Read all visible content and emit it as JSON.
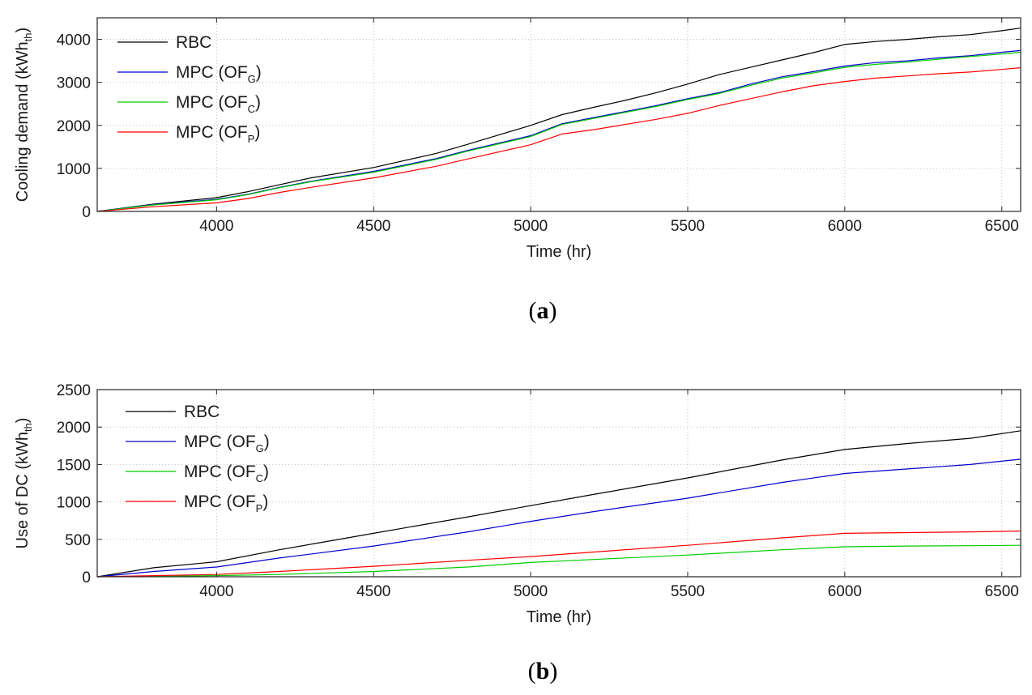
{
  "chart_data": [
    {
      "type": "line",
      "panel": "a",
      "xlabel": "Time (hr)",
      "ylabel": "Cooling demand (kWh",
      "ylabel_sub": "th",
      "ylabel_close": ")",
      "xlim": [
        3620,
        6560
      ],
      "ylim": [
        0,
        4500
      ],
      "xticks": [
        4000,
        4500,
        5000,
        5500,
        6000,
        6500
      ],
      "yticks": [
        0,
        1000,
        2000,
        3000,
        4000
      ],
      "grid": true,
      "legend": "top-left",
      "x": [
        3620,
        3800,
        4000,
        4100,
        4200,
        4300,
        4500,
        4700,
        4800,
        5000,
        5100,
        5200,
        5300,
        5400,
        5500,
        5600,
        5700,
        5800,
        5900,
        6000,
        6100,
        6200,
        6300,
        6400,
        6500,
        6560
      ],
      "series": [
        {
          "name": "RBC",
          "color": "#000000",
          "legend_main": "RBC",
          "legend_sub": "",
          "legend_end": "",
          "values": [
            0,
            170,
            320,
            460,
            620,
            780,
            1020,
            1350,
            1560,
            2000,
            2250,
            2420,
            2580,
            2760,
            2960,
            3180,
            3350,
            3520,
            3690,
            3880,
            3950,
            4000,
            4060,
            4110,
            4200,
            4260
          ]
        },
        {
          "name": "MPC (OF_G)",
          "color": "#0000cc",
          "legend_main": "MPC (OF",
          "legend_sub": "G",
          "legend_end": ")",
          "values": [
            0,
            160,
            280,
            400,
            560,
            700,
            930,
            1230,
            1420,
            1760,
            2040,
            2180,
            2320,
            2460,
            2620,
            2760,
            2960,
            3130,
            3250,
            3380,
            3460,
            3500,
            3570,
            3620,
            3700,
            3740
          ]
        },
        {
          "name": "MPC (OF_C)",
          "color": "#00cc00",
          "legend_main": "MPC (OF",
          "legend_sub": "C",
          "legend_end": ")",
          "values": [
            0,
            150,
            270,
            390,
            550,
            690,
            910,
            1210,
            1400,
            1740,
            2020,
            2160,
            2300,
            2440,
            2600,
            2740,
            2930,
            3100,
            3220,
            3350,
            3420,
            3470,
            3540,
            3600,
            3660,
            3700
          ]
        },
        {
          "name": "MPC (OF_P)",
          "color": "#ff0000",
          "legend_main": "MPC (OF",
          "legend_sub": "P",
          "legend_end": ")",
          "values": [
            0,
            110,
            200,
            300,
            440,
            560,
            780,
            1050,
            1220,
            1550,
            1800,
            1900,
            2020,
            2140,
            2280,
            2460,
            2620,
            2780,
            2920,
            3020,
            3100,
            3150,
            3200,
            3240,
            3300,
            3340
          ]
        }
      ],
      "caption": "a"
    },
    {
      "type": "line",
      "panel": "b",
      "xlabel": "Time (hr)",
      "ylabel": "Use of DC  (kWh",
      "ylabel_sub": "th",
      "ylabel_close": ")",
      "xlim": [
        3620,
        6560
      ],
      "ylim": [
        0,
        2500
      ],
      "xticks": [
        4000,
        4500,
        5000,
        5500,
        6000,
        6500
      ],
      "yticks": [
        0,
        500,
        1000,
        1500,
        2000,
        2500
      ],
      "grid": true,
      "legend": "top-left",
      "x": [
        3620,
        3800,
        4000,
        4200,
        4500,
        4800,
        5000,
        5200,
        5500,
        5800,
        6000,
        6200,
        6400,
        6560
      ],
      "series": [
        {
          "name": "RBC",
          "color": "#000000",
          "legend_main": "RBC",
          "legend_sub": "",
          "legend_end": "",
          "values": [
            0,
            120,
            200,
            360,
            580,
            800,
            950,
            1100,
            1320,
            1560,
            1700,
            1780,
            1850,
            1950
          ]
        },
        {
          "name": "MPC (OF_G)",
          "color": "#0000cc",
          "legend_main": "MPC (OF",
          "legend_sub": "G",
          "legend_end": ")",
          "values": [
            0,
            70,
            130,
            250,
            410,
            600,
            740,
            870,
            1050,
            1260,
            1380,
            1440,
            1500,
            1570
          ]
        },
        {
          "name": "MPC (OF_C)",
          "color": "#00cc00",
          "legend_main": "MPC (OF",
          "legend_sub": "C",
          "legend_end": ")",
          "values": [
            0,
            5,
            15,
            30,
            70,
            130,
            190,
            230,
            290,
            360,
            400,
            410,
            415,
            420
          ]
        },
        {
          "name": "MPC (OF_P)",
          "color": "#ff0000",
          "legend_main": "MPC (OF",
          "legend_sub": "P",
          "legend_end": ")",
          "values": [
            0,
            15,
            30,
            70,
            140,
            220,
            270,
            330,
            420,
            520,
            580,
            590,
            600,
            610
          ]
        }
      ],
      "caption": "b"
    }
  ]
}
